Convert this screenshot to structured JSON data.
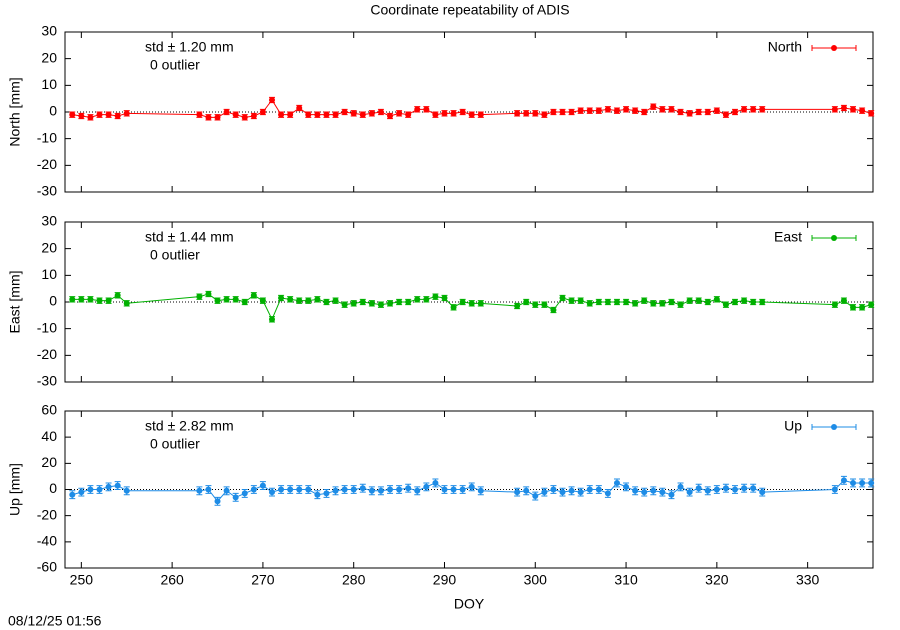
{
  "title": "Coordinate repeatability of ADIS",
  "timestamp": "08/12/25 01:56",
  "chart_data": [
    {
      "type": "line",
      "ylabel": "North [mm]",
      "annotations": [
        "std ± 1.20 mm",
        "0 outlier"
      ],
      "xlim": [
        248.2,
        337.2
      ],
      "xticks": [
        250,
        260,
        270,
        280,
        290,
        300,
        310,
        320,
        330
      ],
      "ylim": [
        -30,
        30
      ],
      "yticks": [
        -30,
        -20,
        -10,
        0,
        10,
        20,
        30
      ],
      "x": [
        249,
        250,
        251,
        252,
        253,
        254,
        255,
        263,
        264,
        265,
        266,
        267,
        268,
        269,
        270,
        271,
        272,
        273,
        274,
        275,
        276,
        277,
        278,
        279,
        280,
        281,
        282,
        283,
        284,
        285,
        286,
        287,
        288,
        289,
        290,
        291,
        292,
        293,
        294,
        298,
        299,
        300,
        301,
        302,
        303,
        304,
        305,
        306,
        307,
        308,
        309,
        310,
        311,
        312,
        313,
        314,
        315,
        316,
        317,
        318,
        319,
        320,
        321,
        322,
        323,
        324,
        325,
        333,
        334,
        335,
        336,
        337
      ],
      "series": [
        {
          "name": "North",
          "color": "#ff0000",
          "values": [
            -1,
            -1.5,
            -2,
            -1,
            -1,
            -1.5,
            -0.5,
            -1,
            -2,
            -2,
            0,
            -1,
            -2,
            -1.5,
            0,
            4.5,
            -1,
            -1,
            1.5,
            -1,
            -1,
            -1,
            -1,
            0,
            -0.5,
            -1,
            -0.5,
            0,
            -1.5,
            -0.5,
            -1,
            1,
            1,
            -1,
            -0.5,
            -0.5,
            0,
            -1,
            -1,
            -0.5,
            -0.5,
            -0.5,
            -1,
            0,
            0,
            0,
            0.5,
            0.5,
            0.5,
            1,
            0.5,
            1,
            0.5,
            0,
            2,
            1,
            1,
            0,
            -0.5,
            0,
            0,
            0.5,
            -1,
            0,
            1,
            1,
            1,
            1,
            1.5,
            1,
            0.5,
            -0.5
          ],
          "errors": [
            1,
            1,
            1,
            1,
            1,
            1,
            1,
            1,
            1,
            1,
            1,
            1,
            1,
            1,
            1,
            1,
            1,
            1,
            1,
            1,
            1,
            1,
            1,
            1,
            1,
            1,
            1,
            1,
            1,
            1,
            1,
            1,
            1,
            1,
            1,
            1,
            1,
            1,
            1,
            1,
            1,
            1,
            1,
            1,
            1,
            1,
            1,
            1,
            1,
            1,
            1,
            1,
            1,
            1,
            1,
            1,
            1,
            1,
            1,
            1,
            1,
            1,
            1,
            1,
            1,
            1,
            1,
            1,
            1,
            1,
            1,
            1
          ]
        }
      ]
    },
    {
      "type": "line",
      "ylabel": "East [mm]",
      "annotations": [
        "std ± 1.44 mm",
        "0 outlier"
      ],
      "xlim": [
        248.2,
        337.2
      ],
      "xticks": [
        250,
        260,
        270,
        280,
        290,
        300,
        310,
        320,
        330
      ],
      "ylim": [
        -30,
        30
      ],
      "yticks": [
        -30,
        -20,
        -10,
        0,
        10,
        20,
        30
      ],
      "x": [
        249,
        250,
        251,
        252,
        253,
        254,
        255,
        263,
        264,
        265,
        266,
        267,
        268,
        269,
        270,
        271,
        272,
        273,
        274,
        275,
        276,
        277,
        278,
        279,
        280,
        281,
        282,
        283,
        284,
        285,
        286,
        287,
        288,
        289,
        290,
        291,
        292,
        293,
        294,
        298,
        299,
        300,
        301,
        302,
        303,
        304,
        305,
        306,
        307,
        308,
        309,
        310,
        311,
        312,
        313,
        314,
        315,
        316,
        317,
        318,
        319,
        320,
        321,
        322,
        323,
        324,
        325,
        333,
        334,
        335,
        336,
        337
      ],
      "series": [
        {
          "name": "East",
          "color": "#00b000",
          "values": [
            1,
            1,
            1,
            0.5,
            0.5,
            2.5,
            -0.5,
            2,
            3,
            0.5,
            1,
            1,
            0,
            2.5,
            0.5,
            -6.5,
            1.5,
            1,
            0.5,
            0.5,
            1,
            0,
            0.5,
            -1,
            -0.5,
            0,
            -0.5,
            -1,
            -0.5,
            0,
            0,
            1,
            1,
            2,
            1.5,
            -2,
            0,
            -0.5,
            -0.5,
            -1.5,
            0,
            -1,
            -1,
            -3,
            1.5,
            0.5,
            0.5,
            -0.5,
            0,
            0,
            0,
            0,
            -0.5,
            0.5,
            -0.5,
            -0.5,
            0,
            -1,
            0.5,
            0.5,
            0,
            1,
            -1,
            0,
            0.5,
            0,
            0,
            -1,
            0.5,
            -2,
            -2,
            -1
          ],
          "errors": [
            1,
            1,
            1,
            1,
            1,
            1,
            1,
            1,
            1,
            1,
            1,
            1,
            1,
            1,
            1,
            1,
            1,
            1,
            1,
            1,
            1,
            1,
            1,
            1,
            1,
            1,
            1,
            1,
            1,
            1,
            1,
            1,
            1,
            1,
            1,
            1,
            1,
            1,
            1,
            1,
            1,
            1,
            1,
            1,
            1,
            1,
            1,
            1,
            1,
            1,
            1,
            1,
            1,
            1,
            1,
            1,
            1,
            1,
            1,
            1,
            1,
            1,
            1,
            1,
            1,
            1,
            1,
            1,
            1,
            1,
            1,
            1
          ]
        }
      ]
    },
    {
      "type": "line",
      "ylabel": "Up [mm]",
      "xlabel": "DOY",
      "annotations": [
        "std ± 2.82 mm",
        "0 outlier"
      ],
      "xlim": [
        248.2,
        337.2
      ],
      "xticks": [
        250,
        260,
        270,
        280,
        290,
        300,
        310,
        320,
        330
      ],
      "ylim": [
        -60,
        60
      ],
      "yticks": [
        -60,
        -40,
        -20,
        0,
        20,
        40,
        60
      ],
      "x": [
        249,
        250,
        251,
        252,
        253,
        254,
        255,
        263,
        264,
        265,
        266,
        267,
        268,
        269,
        270,
        271,
        272,
        273,
        274,
        275,
        276,
        277,
        278,
        279,
        280,
        281,
        282,
        283,
        284,
        285,
        286,
        287,
        288,
        289,
        290,
        291,
        292,
        293,
        294,
        298,
        299,
        300,
        301,
        302,
        303,
        304,
        305,
        306,
        307,
        308,
        309,
        310,
        311,
        312,
        313,
        314,
        315,
        316,
        317,
        318,
        319,
        320,
        321,
        322,
        323,
        324,
        325,
        333,
        334,
        335,
        336,
        337
      ],
      "series": [
        {
          "name": "Up",
          "color": "#1e8ce6",
          "values": [
            -4,
            -2,
            0,
            0,
            2,
            3,
            -1,
            -1,
            0,
            -9,
            -1,
            -6,
            -3,
            0,
            3,
            -2,
            0,
            0,
            0,
            0,
            -4,
            -3,
            -1,
            0,
            0,
            1,
            -1,
            -1,
            0,
            0,
            1,
            -1,
            2,
            5,
            0,
            0,
            0,
            2,
            -1,
            -2,
            -1,
            -5,
            -2,
            0,
            -2,
            -1,
            -2,
            0,
            0,
            -3,
            5,
            2,
            -1,
            -2,
            -1,
            -2,
            -4,
            2,
            -2,
            1,
            -1,
            0,
            1,
            0,
            1,
            1,
            -2,
            0,
            7,
            5,
            5,
            5
          ],
          "errors": [
            3,
            3,
            3,
            3,
            3,
            3,
            3,
            3,
            3,
            3,
            3,
            3,
            3,
            3,
            3,
            3,
            3,
            3,
            3,
            3,
            3,
            3,
            3,
            3,
            3,
            3,
            3,
            3,
            3,
            3,
            3,
            3,
            3,
            3,
            3,
            3,
            3,
            3,
            3,
            3,
            3,
            3,
            3,
            3,
            3,
            3,
            3,
            3,
            3,
            3,
            3,
            3,
            3,
            3,
            3,
            3,
            3,
            3,
            3,
            3,
            3,
            3,
            3,
            3,
            3,
            3,
            3,
            3,
            3,
            3,
            3,
            3
          ]
        }
      ]
    }
  ]
}
